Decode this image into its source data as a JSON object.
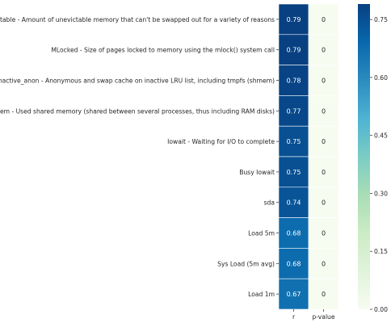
{
  "chart_data": {
    "type": "heatmap",
    "title": "",
    "xlabel": "",
    "ylabel": "",
    "columns": [
      "r",
      "p-value"
    ],
    "rows": [
      "Unevictable - Amount of unevictable memory that can't be swapped out for a variety of reasons",
      "MLocked - Size of pages locked to memory using the mlock() system call",
      "Inactive_anon - Anonymous and swap cache on inactive LRU list, including tmpfs (shmem)",
      "Shmem - Used shared memory (shared between several processes, thus including RAM disks)",
      "Iowait - Waiting for I/O to complete",
      "Busy Iowait",
      "sda",
      "Load 5m",
      "Sys Load (5m avg)",
      "Load 1m"
    ],
    "values": [
      [
        0.79,
        0
      ],
      [
        0.79,
        0
      ],
      [
        0.78,
        0
      ],
      [
        0.77,
        0
      ],
      [
        0.75,
        0
      ],
      [
        0.75,
        0
      ],
      [
        0.74,
        0
      ],
      [
        0.68,
        0
      ],
      [
        0.68,
        0
      ],
      [
        0.67,
        0
      ]
    ],
    "cell_labels": [
      [
        "0.79",
        "0"
      ],
      [
        "0.79",
        "0"
      ],
      [
        "0.78",
        "0"
      ],
      [
        "0.77",
        "0"
      ],
      [
        "0.75",
        "0"
      ],
      [
        "0.75",
        "0"
      ],
      [
        "0.74",
        "0"
      ],
      [
        "0.68",
        "0"
      ],
      [
        "0.68",
        "0"
      ],
      [
        "0.67",
        "0"
      ]
    ],
    "colormap": "GnBu",
    "colorbar": {
      "range": [
        0,
        0.79
      ],
      "ticks": [
        0.0,
        0.15,
        0.3,
        0.45,
        0.6,
        0.75
      ],
      "tick_labels": [
        "0.00",
        "0.15",
        "0.30",
        "0.45",
        "0.60",
        "0.75"
      ]
    },
    "colors": {
      "stops": [
        "#f7fcf0",
        "#e0f3db",
        "#ccebc5",
        "#a8ddb5",
        "#7bccc4",
        "#4eb3d3",
        "#2b8cbe",
        "#0868ac",
        "#084081"
      ],
      "dark_text": "#262626",
      "light_text": "#ffffff"
    }
  }
}
